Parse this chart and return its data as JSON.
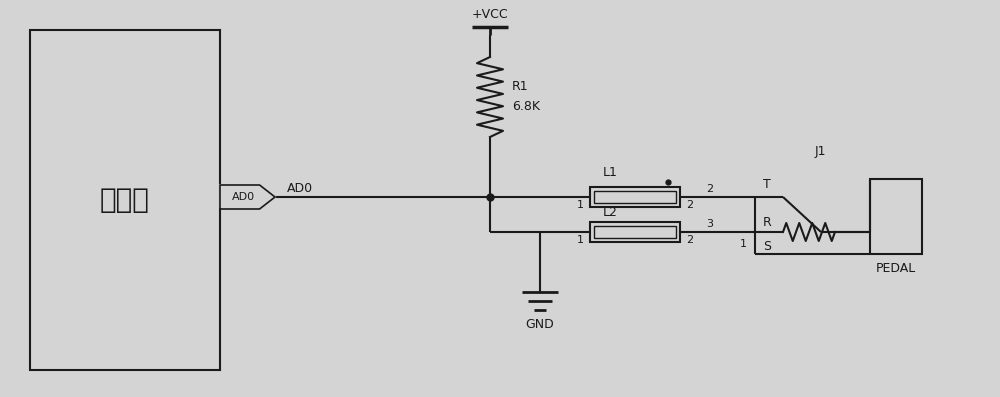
{
  "bg_color": "#d4d4d4",
  "line_color": "#1a1a1a",
  "fig_width": 10.0,
  "fig_height": 3.97,
  "dpi": 100,
  "mcu_label": "单片机",
  "ad0_label": "AD0",
  "vcc_label": "+VCC",
  "r1_label": "R1",
  "r1_val": "6.8K",
  "l1_label": "L1",
  "l2_label": "L2",
  "j1_label": "J1",
  "gnd_label": "GND",
  "pedal_label": "PEDAL",
  "t_label": "T",
  "r_label": "R",
  "s_label": "S"
}
